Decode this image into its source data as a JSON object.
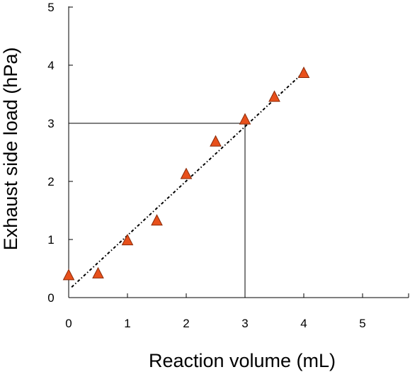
{
  "chart_data": {
    "type": "scatter",
    "xlabel": "Reaction volume (mL)",
    "ylabel": "Exhaust side load (hPa)",
    "xlim": [
      0,
      5.8
    ],
    "ylim": [
      0,
      5
    ],
    "x_ticks": [
      "0",
      "1",
      "2",
      "3",
      "4",
      "5"
    ],
    "y_ticks": [
      "0",
      "1",
      "2",
      "3",
      "4",
      "5"
    ],
    "grid": false,
    "legend": "none",
    "series": [
      {
        "marker": "triangle",
        "color": "#e8501b",
        "x": [
          0,
          0.5,
          1,
          1.5,
          2,
          2.5,
          3,
          3.5,
          4
        ],
        "y": [
          0.38,
          0.41,
          0.98,
          1.32,
          2.12,
          2.68,
          3.06,
          3.45,
          3.86
        ]
      }
    ],
    "trendline": {
      "style": "dotted",
      "color": "#000000",
      "x": [
        0.05,
        4
      ],
      "y": [
        0.18,
        3.88
      ]
    },
    "reference": {
      "x": 3,
      "y": 3
    }
  }
}
